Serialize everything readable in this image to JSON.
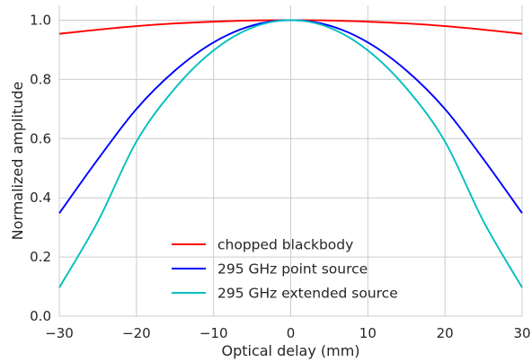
{
  "chart_data": {
    "type": "line",
    "title": "",
    "xlabel": "Optical delay (mm)",
    "ylabel": "Normalized amplitude",
    "xlim": [
      -30,
      30
    ],
    "ylim": [
      0.0,
      1.05
    ],
    "xticks": [
      -30,
      -20,
      -10,
      0,
      10,
      20,
      30
    ],
    "xtick_labels": [
      "−30",
      "−20",
      "−10",
      "0",
      "10",
      "20",
      "30"
    ],
    "yticks": [
      0.0,
      0.2,
      0.4,
      0.6,
      0.8,
      1.0
    ],
    "ytick_labels": [
      "0.0",
      "0.2",
      "0.4",
      "0.6",
      "0.8",
      "1.0"
    ],
    "grid": true,
    "legend_position": "lower-center",
    "x": [
      -30,
      -25,
      -20,
      -15,
      -10,
      -5,
      0,
      5,
      10,
      15,
      20,
      25,
      30
    ],
    "series": [
      {
        "name": "chopped blackbody",
        "color": "#ff0000",
        "values": [
          0.954,
          0.968,
          0.98,
          0.989,
          0.995,
          0.999,
          1.0,
          0.999,
          0.995,
          0.989,
          0.98,
          0.968,
          0.954
        ]
      },
      {
        "name": "295 GHz point source",
        "color": "#0000ff",
        "values": [
          0.348,
          0.53,
          0.7,
          0.83,
          0.925,
          0.982,
          1.0,
          0.982,
          0.925,
          0.83,
          0.7,
          0.53,
          0.348
        ]
      },
      {
        "name": "295 GHz extended source",
        "color": "#00bfbf",
        "values": [
          0.097,
          0.32,
          0.59,
          0.77,
          0.898,
          0.975,
          1.0,
          0.975,
          0.898,
          0.77,
          0.59,
          0.32,
          0.097
        ]
      }
    ]
  }
}
